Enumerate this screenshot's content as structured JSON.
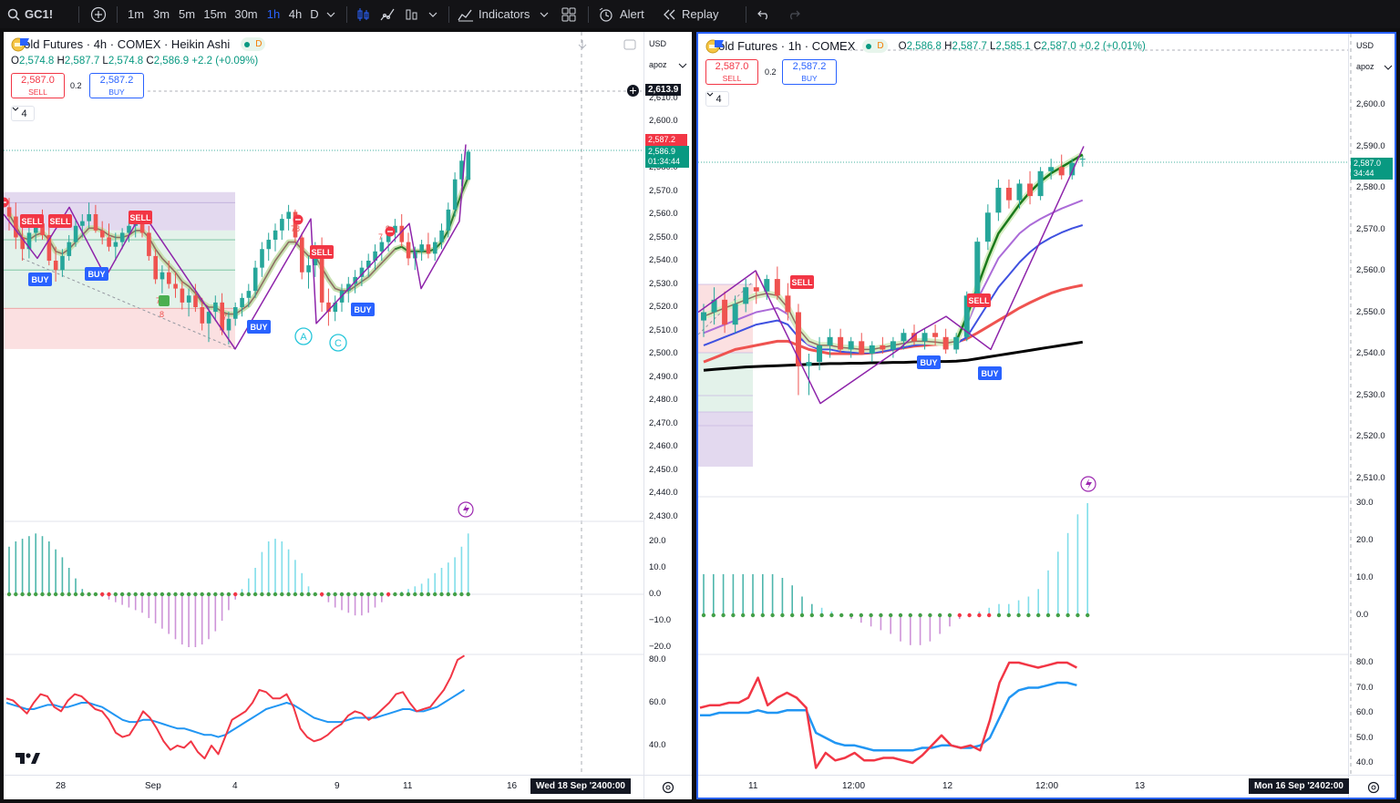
{
  "toolbar": {
    "symbol": "GC1!",
    "intervals": [
      "1m",
      "3m",
      "5m",
      "15m",
      "30m",
      "1h",
      "4h",
      "D"
    ],
    "active_interval": "1h",
    "indicators_label": "Indicators",
    "alert_label": "Alert",
    "replay_label": "Replay"
  },
  "colors": {
    "up": "#089981",
    "down": "#f23645",
    "accent": "#2962ff",
    "badge_dark": "#131722"
  },
  "left": {
    "title": "Gold Futures · 4h · COMEX · Heikin Ashi",
    "status_letter": "D",
    "ohlc": {
      "o": "2,574.8",
      "h": "2,587.7",
      "l": "2,574.8",
      "c": "2,586.9",
      "chg": "+2.2 (+0.09%)"
    },
    "sell_price": "2,587.0",
    "sell_label": "SELL",
    "spread": "0.2",
    "buy_price": "2,587.2",
    "buy_label": "BUY",
    "collapse_count": "4",
    "currency": "USD",
    "scale_mode": "apoz",
    "price_ticks": [
      "2,610.0",
      "2,600.0",
      "2,590.0",
      "2,580.0",
      "2,570.0",
      "2,560.0",
      "2,550.0",
      "2,540.0",
      "2,530.0",
      "2,520.0",
      "2,510.0",
      "2,500.0",
      "2,490.0",
      "2,480.0",
      "2,470.0",
      "2,460.0",
      "2,450.0",
      "2,440.0",
      "2,430.0"
    ],
    "crosshair_price": "2,613.9",
    "last_red": "2,587.2",
    "last_green": "2,586.9",
    "countdown": "01:34:44",
    "osc_ticks": [
      "20.0",
      "10.0",
      "0.0",
      "−10.0",
      "−20.0"
    ],
    "rsi_ticks": [
      "80.0",
      "60.0",
      "40.0"
    ],
    "time_ticks": [
      "28",
      "Sep",
      "4",
      "9",
      "11",
      "16"
    ],
    "date_badge": "Wed 18 Sep '24",
    "time_badge": "00:00",
    "signals": [
      "SELL",
      "SELL",
      "SELL",
      "BUY",
      "BUY",
      "BUY",
      "BUY",
      "SELL"
    ],
    "wave_a": "A",
    "wave_c": "C",
    "small_numbers": [
      "78",
      "7",
      "7",
      "8",
      "7",
      "9"
    ],
    "candles": [
      [
        2563,
        2567,
        2553,
        2559
      ],
      [
        2559,
        2565,
        2545,
        2550
      ],
      [
        2550,
        2555,
        2540,
        2545
      ],
      [
        2545,
        2558,
        2541,
        2552
      ],
      [
        2552,
        2560,
        2548,
        2556
      ],
      [
        2556,
        2562,
        2549,
        2551
      ],
      [
        2551,
        2556,
        2538,
        2540
      ],
      [
        2540,
        2546,
        2531,
        2536
      ],
      [
        2536,
        2545,
        2533,
        2542
      ],
      [
        2542,
        2551,
        2540,
        2548
      ],
      [
        2548,
        2558,
        2546,
        2555
      ],
      [
        2555,
        2560,
        2550,
        2557
      ],
      [
        2557,
        2565,
        2554,
        2560
      ],
      [
        2560,
        2564,
        2552,
        2553
      ],
      [
        2553,
        2557,
        2547,
        2550
      ],
      [
        2550,
        2556,
        2544,
        2546
      ],
      [
        2546,
        2552,
        2540,
        2548
      ],
      [
        2548,
        2554,
        2545,
        2552
      ],
      [
        2552,
        2557,
        2548,
        2555
      ],
      [
        2555,
        2560,
        2550,
        2558
      ],
      [
        2558,
        2561,
        2550,
        2552
      ],
      [
        2552,
        2555,
        2540,
        2542
      ],
      [
        2542,
        2545,
        2530,
        2532
      ],
      [
        2532,
        2538,
        2526,
        2535
      ],
      [
        2535,
        2540,
        2528,
        2530
      ],
      [
        2530,
        2535,
        2524,
        2528
      ],
      [
        2528,
        2531,
        2519,
        2522
      ],
      [
        2522,
        2528,
        2516,
        2525
      ],
      [
        2525,
        2530,
        2518,
        2520
      ],
      [
        2520,
        2524,
        2510,
        2513
      ],
      [
        2513,
        2520,
        2505,
        2518
      ],
      [
        2518,
        2525,
        2514,
        2522
      ],
      [
        2522,
        2526,
        2508,
        2510
      ],
      [
        2510,
        2518,
        2504,
        2515
      ],
      [
        2515,
        2522,
        2512,
        2520
      ],
      [
        2520,
        2526,
        2516,
        2524
      ],
      [
        2524,
        2530,
        2520,
        2527
      ],
      [
        2527,
        2540,
        2524,
        2537
      ],
      [
        2537,
        2548,
        2533,
        2545
      ],
      [
        2545,
        2552,
        2540,
        2549
      ],
      [
        2549,
        2556,
        2544,
        2553
      ],
      [
        2553,
        2560,
        2549,
        2558
      ],
      [
        2558,
        2564,
        2553,
        2561
      ],
      [
        2561,
        2562,
        2548,
        2550
      ],
      [
        2550,
        2552,
        2532,
        2535
      ],
      [
        2535,
        2542,
        2528,
        2538
      ],
      [
        2538,
        2548,
        2533,
        2545
      ],
      [
        2545,
        2550,
        2518,
        2522
      ],
      [
        2522,
        2528,
        2512,
        2518
      ],
      [
        2518,
        2525,
        2514,
        2522
      ],
      [
        2522,
        2530,
        2518,
        2527
      ],
      [
        2527,
        2533,
        2522,
        2530
      ],
      [
        2530,
        2536,
        2526,
        2533
      ],
      [
        2533,
        2540,
        2529,
        2537
      ],
      [
        2537,
        2543,
        2533,
        2540
      ],
      [
        2540,
        2547,
        2536,
        2544
      ],
      [
        2544,
        2550,
        2540,
        2548
      ],
      [
        2548,
        2555,
        2544,
        2552
      ],
      [
        2552,
        2558,
        2548,
        2555
      ],
      [
        2555,
        2560,
        2546,
        2548
      ],
      [
        2548,
        2552,
        2538,
        2541
      ],
      [
        2541,
        2546,
        2536,
        2544
      ],
      [
        2544,
        2549,
        2540,
        2547
      ],
      [
        2547,
        2552,
        2541,
        2543
      ],
      [
        2543,
        2550,
        2540,
        2548
      ],
      [
        2548,
        2556,
        2545,
        2553
      ],
      [
        2553,
        2565,
        2550,
        2562
      ],
      [
        2562,
        2578,
        2559,
        2575
      ],
      [
        2575,
        2586,
        2572,
        2583
      ],
      [
        2574.8,
        2587.7,
        2574.8,
        2586.9
      ]
    ],
    "signal_line_values": [
      2560,
      2555,
      2550,
      2549,
      2551,
      2552,
      2549,
      2544,
      2543,
      2545,
      2548,
      2551,
      2554,
      2554,
      2553,
      2551,
      2550,
      2550,
      2551,
      2553,
      2553,
      2550,
      2545,
      2541,
      2538,
      2535,
      2531,
      2529,
      2526,
      2522,
      2520,
      2520,
      2518,
      2517,
      2517,
      2519,
      2521,
      2525,
      2530,
      2535,
      2540,
      2544,
      2548,
      2548,
      2545,
      2542,
      2542,
      2537,
      2532,
      2528,
      2527,
      2527,
      2529,
      2531,
      2533,
      2536,
      2539,
      2542,
      2545,
      2546,
      2544,
      2544,
      2544,
      2544,
      2545,
      2548,
      2553,
      2561,
      2569,
      2576
    ],
    "zigzag_values": [
      2560,
      2541,
      2563,
      2533,
      2561,
      2502,
      2558,
      2513,
      2556,
      2528,
      2557,
      2590
    ],
    "osc_values": [
      18,
      20,
      21,
      22,
      23,
      22,
      20,
      17,
      14,
      10,
      6,
      2,
      0,
      0,
      -1,
      -2,
      -3,
      -4,
      -5,
      -6,
      -7,
      -9,
      -11,
      -13,
      -15,
      -17,
      -19,
      -20,
      -20,
      -19,
      -17,
      -14,
      -10,
      -6,
      -2,
      2,
      6,
      10,
      16,
      20,
      21,
      20,
      17,
      13,
      8,
      3,
      0,
      -1,
      -3,
      -5,
      -6,
      -7,
      -8,
      -8,
      -7,
      -5,
      -3,
      -1,
      0,
      1,
      2,
      3,
      4,
      6,
      8,
      10,
      12,
      14,
      18,
      23
    ],
    "rsi_values": [
      62,
      61,
      58,
      55,
      60,
      64,
      63,
      58,
      56,
      61,
      64,
      63,
      60,
      57,
      56,
      52,
      46,
      44,
      45,
      50,
      56,
      53,
      48,
      42,
      38,
      40,
      39,
      42,
      37,
      34,
      40,
      36,
      44,
      52,
      54,
      56,
      60,
      66,
      65,
      62,
      62,
      64,
      58,
      48,
      44,
      42,
      43,
      45,
      48,
      50,
      54,
      56,
      55,
      52,
      54,
      57,
      60,
      64,
      65,
      60,
      56,
      57,
      58,
      62,
      66,
      72,
      80,
      82
    ],
    "rsi_ma_values": [
      60,
      59,
      58,
      57,
      57,
      58,
      59,
      59,
      58,
      58,
      59,
      60,
      60,
      59,
      58,
      56,
      54,
      52,
      51,
      51,
      52,
      52,
      51,
      50,
      49,
      48,
      48,
      47,
      46,
      45,
      45,
      44,
      45,
      47,
      49,
      51,
      53,
      55,
      57,
      58,
      59,
      60,
      59,
      57,
      55,
      53,
      52,
      51,
      51,
      51,
      52,
      53,
      53,
      53,
      53,
      54,
      55,
      56,
      57,
      57,
      56,
      56,
      57,
      58,
      60,
      62,
      64,
      66
    ]
  },
  "right": {
    "title": "Gold Futures · 1h · COMEX",
    "status_letter": "D",
    "ohlc": {
      "o": "2,586.8",
      "h": "2,587.7",
      "l": "2,585.1",
      "c": "2,587.0",
      "chg": "+0.2 (+0.01%)"
    },
    "sell_price": "2,587.0",
    "sell_label": "SELL",
    "spread": "0.2",
    "buy_price": "2,587.2",
    "buy_label": "BUY",
    "collapse_count": "4",
    "currency": "USD",
    "scale_mode": "apoz",
    "price_ticks": [
      "2,600.0",
      "2,590.0",
      "2,580.0",
      "2,570.0",
      "2,560.0",
      "2,550.0",
      "2,540.0",
      "2,530.0",
      "2,520.0",
      "2,510.0"
    ],
    "last_price": "2,587.0",
    "countdown": "34:44",
    "osc_ticks": [
      "30.0",
      "20.0",
      "10.0",
      "0.0"
    ],
    "rsi_ticks": [
      "80.0",
      "70.0",
      "60.0",
      "50.0",
      "40.0"
    ],
    "time_ticks": [
      "11",
      "12:00",
      "12",
      "12:00",
      "13"
    ],
    "date_badge": "Mon 16 Sep '24",
    "time_badge": "02:00",
    "signals": [
      "SELL",
      "SELL",
      "BUY",
      "BUY"
    ],
    "candles": [
      [
        2548,
        2552,
        2544,
        2550
      ],
      [
        2550,
        2556,
        2547,
        2553
      ],
      [
        2553,
        2555,
        2545,
        2547
      ],
      [
        2547,
        2554,
        2545,
        2552
      ],
      [
        2552,
        2558,
        2550,
        2556
      ],
      [
        2556,
        2560,
        2552,
        2555
      ],
      [
        2555,
        2559,
        2553,
        2558
      ],
      [
        2558,
        2561,
        2553,
        2554
      ],
      [
        2554,
        2557,
        2548,
        2550
      ],
      [
        2550,
        2552,
        2530,
        2537
      ],
      [
        2537,
        2540,
        2530,
        2538
      ],
      [
        2538,
        2544,
        2536,
        2542
      ],
      [
        2542,
        2546,
        2539,
        2544
      ],
      [
        2544,
        2546,
        2540,
        2541
      ],
      [
        2541,
        2544,
        2539,
        2543
      ],
      [
        2543,
        2545,
        2540,
        2540
      ],
      [
        2540,
        2543,
        2538,
        2542
      ],
      [
        2542,
        2544,
        2540,
        2541
      ],
      [
        2541,
        2544,
        2539,
        2543
      ],
      [
        2543,
        2546,
        2541,
        2545
      ],
      [
        2545,
        2547,
        2542,
        2543
      ],
      [
        2543,
        2546,
        2541,
        2545
      ],
      [
        2545,
        2547,
        2542,
        2544
      ],
      [
        2544,
        2546,
        2540,
        2541
      ],
      [
        2541,
        2545,
        2540,
        2544
      ],
      [
        2544,
        2555,
        2543,
        2554
      ],
      [
        2554,
        2568,
        2553,
        2567
      ],
      [
        2567,
        2576,
        2565,
        2574
      ],
      [
        2574,
        2582,
        2572,
        2580
      ],
      [
        2580,
        2582,
        2575,
        2577
      ],
      [
        2577,
        2582,
        2575,
        2581
      ],
      [
        2581,
        2584,
        2576,
        2578
      ],
      [
        2578,
        2585,
        2577,
        2584
      ],
      [
        2584,
        2587,
        2582,
        2585
      ],
      [
        2585,
        2588,
        2582,
        2583
      ],
      [
        2583,
        2587,
        2582,
        2586
      ],
      [
        2586.8,
        2587.7,
        2585.1,
        2587.0
      ]
    ],
    "ma_black": [
      2536,
      2536.2,
      2536.4,
      2536.6,
      2536.8,
      2536.9,
      2537,
      2537.1,
      2537.2,
      2537.3,
      2537.4,
      2537.5,
      2537.6,
      2537.6,
      2537.7,
      2537.7,
      2537.8,
      2537.8,
      2537.9,
      2537.9,
      2538,
      2538,
      2538.1,
      2538.1,
      2538.2,
      2538.4,
      2538.8,
      2539.2,
      2539.6,
      2540,
      2540.4,
      2540.8,
      2541.2,
      2541.6,
      2542,
      2542.4,
      2542.8
    ],
    "ma_red": [
      2538,
      2539,
      2540,
      2541,
      2541.5,
      2542,
      2542.5,
      2543,
      2543,
      2542,
      2541,
      2540.5,
      2540,
      2540,
      2540,
      2540,
      2540.2,
      2540.5,
      2541,
      2541.4,
      2541.8,
      2542,
      2542.2,
      2542.4,
      2542.8,
      2543.6,
      2545,
      2546.5,
      2548,
      2549.5,
      2551,
      2552.3,
      2553.5,
      2554.6,
      2555.4,
      2556,
      2556.5
    ],
    "ma_blue": [
      2542,
      2543,
      2544,
      2545,
      2546,
      2547,
      2547.5,
      2548,
      2547,
      2544,
      2542,
      2541,
      2541,
      2540.5,
      2540.3,
      2540.2,
      2540.2,
      2540.5,
      2541,
      2541.5,
      2542,
      2542.3,
      2542.5,
      2542.4,
      2542.4,
      2544,
      2548,
      2552,
      2556,
      2559,
      2562,
      2564.5,
      2566.5,
      2568,
      2569.2,
      2570.2,
      2571
    ],
    "ma_purple": [
      2545,
      2546,
      2547,
      2548,
      2549,
      2550,
      2550.5,
      2551,
      2549.5,
      2545,
      2542,
      2541.5,
      2542,
      2542,
      2541.8,
      2541.5,
      2541.5,
      2542,
      2542.5,
      2543,
      2543.5,
      2543.5,
      2543.3,
      2543,
      2543.2,
      2547,
      2553,
      2558,
      2563,
      2566,
      2569,
      2571,
      2572.5,
      2573.8,
      2575,
      2576,
      2577
    ],
    "ma_green": [
      2549,
      2550,
      2551,
      2552,
      2553,
      2554,
      2554.5,
      2554,
      2551,
      2546,
      2543,
      2542,
      2542,
      2541.5,
      2541.3,
      2541,
      2541,
      2541.5,
      2542,
      2542.5,
      2543,
      2543,
      2542.8,
      2542.5,
      2543,
      2549,
      2556,
      2563,
      2569,
      2572.5,
      2576,
      2579,
      2581.5,
      2583.5,
      2585,
      2586.5,
      2588
    ],
    "zigzag_values": [
      2550,
      2560,
      2528,
      2541,
      2545,
      2549,
      2541,
      2590
    ],
    "osc_values": [
      11,
      11,
      11,
      11,
      11,
      11,
      11,
      11,
      10,
      8,
      5,
      3,
      2,
      1,
      0,
      -1,
      -2,
      -3,
      -4,
      -5,
      -7,
      -8,
      -8,
      -7,
      -5,
      -3,
      -1,
      0,
      1,
      2,
      3,
      3,
      4,
      5,
      7,
      12,
      17,
      22,
      27,
      30
    ],
    "rsi_values": [
      62,
      63,
      63,
      64,
      64,
      66,
      74,
      63,
      66,
      68,
      66,
      62,
      38,
      44,
      41,
      42,
      44,
      41,
      41,
      42,
      42,
      41,
      40,
      43,
      47,
      51,
      47,
      46,
      47,
      45,
      57,
      72,
      80,
      80,
      79,
      78,
      79,
      80,
      80,
      78
    ],
    "rsi_ma_values": [
      59,
      59,
      60,
      60,
      60,
      60,
      61,
      60,
      60,
      61,
      61,
      61,
      52,
      50,
      48,
      47,
      47,
      46,
      45,
      45,
      45,
      45,
      45,
      46,
      46,
      47,
      47,
      46,
      46,
      47,
      50,
      58,
      66,
      69,
      70,
      70,
      71,
      72,
      72,
      71
    ]
  }
}
